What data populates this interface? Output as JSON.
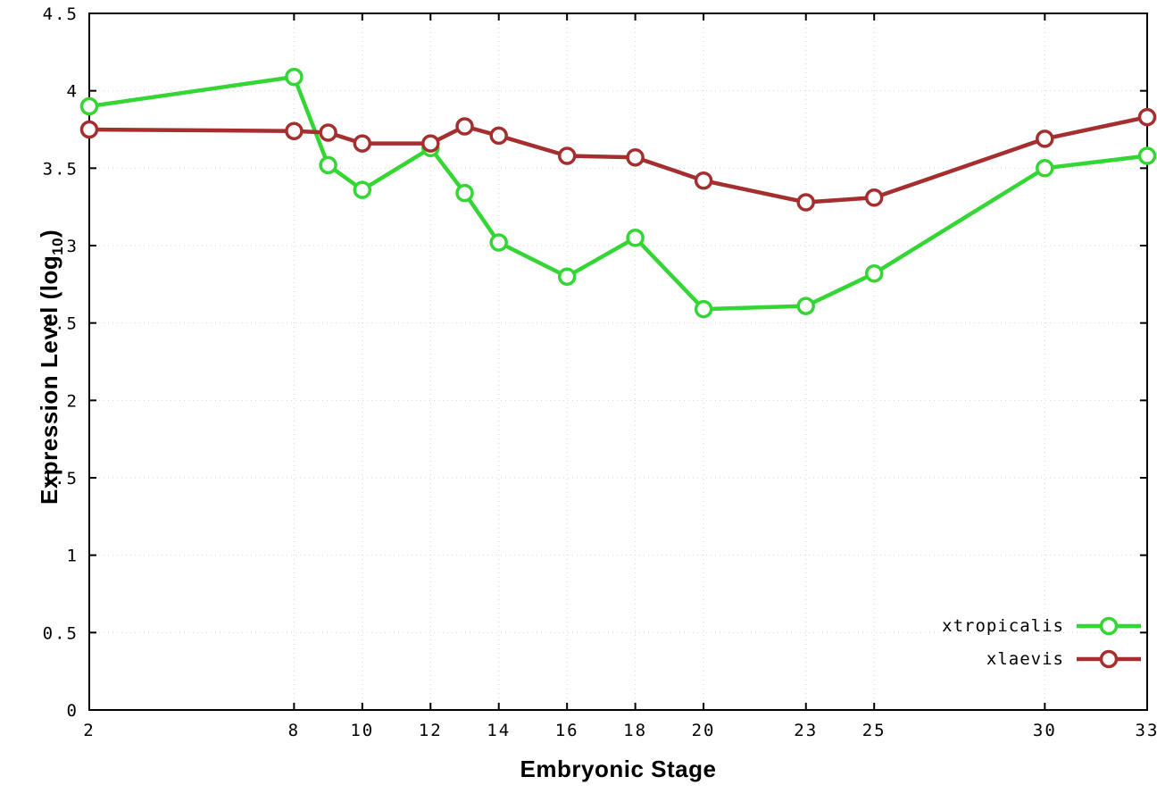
{
  "chart_data": {
    "type": "line",
    "title": "",
    "xlabel": "Embryonic Stage",
    "ylabel": "Expression Level (log10)",
    "ylabel_main": "Expression Level (log",
    "ylabel_sub": "10",
    "ylabel_end": ")",
    "x": [
      2,
      8,
      9,
      10,
      12,
      13,
      14,
      16,
      18,
      20,
      23,
      25,
      30,
      33
    ],
    "xticks": [
      2,
      8,
      10,
      12,
      14,
      16,
      18,
      20,
      23,
      25,
      30,
      33
    ],
    "yticks": [
      0,
      0.5,
      1,
      1.5,
      2,
      2.5,
      3,
      3.5,
      4,
      4.5
    ],
    "xlim": [
      2,
      33
    ],
    "ylim": [
      0,
      4.5
    ],
    "grid": true,
    "legend_position": "bottom-right",
    "marker": "open-circle",
    "series": [
      {
        "name": "xtropicalis",
        "color": "#33d633",
        "values": [
          3.9,
          4.09,
          3.52,
          3.36,
          3.63,
          3.34,
          3.02,
          2.8,
          3.05,
          2.59,
          2.61,
          2.82,
          3.5,
          3.58
        ]
      },
      {
        "name": "xlaevis",
        "color": "#a52e2e",
        "values": [
          3.75,
          3.74,
          3.73,
          3.66,
          3.66,
          3.77,
          3.71,
          3.58,
          3.57,
          3.42,
          3.28,
          3.31,
          3.69,
          3.83
        ]
      }
    ]
  }
}
